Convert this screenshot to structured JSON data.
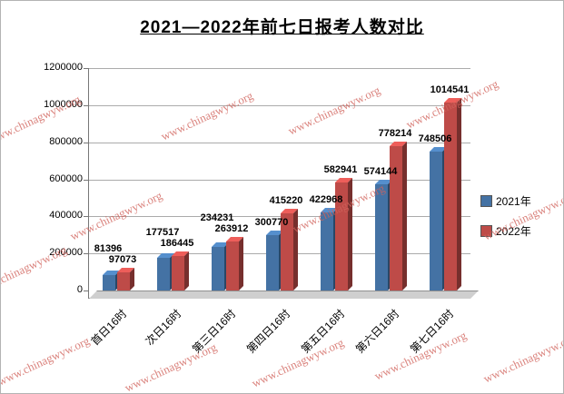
{
  "chart_data": {
    "type": "bar",
    "effect": "3d",
    "title": "2021—2022年前七日报考人数对比",
    "categories": [
      "首日16时",
      "次日16时",
      "第三日16时",
      "第四日16时",
      "第五日16时",
      "第六日16时",
      "第七日16时"
    ],
    "series": [
      {
        "name": "2021年",
        "color": "#4472A4",
        "values": [
          81396,
          177517,
          234231,
          300770,
          422968,
          574144,
          748506
        ]
      },
      {
        "name": "2022年",
        "color": "#BE4B48",
        "values": [
          97073,
          186445,
          263912,
          415220,
          582941,
          778214,
          1014541
        ]
      }
    ],
    "xlabel": "",
    "ylabel": "",
    "ylim": [
      0,
      1200000
    ],
    "ytick_interval": 200000,
    "grid": true,
    "legend_position": "right"
  },
  "watermark": {
    "text": "www.chinagwyw.org",
    "color": "#D1635C"
  }
}
